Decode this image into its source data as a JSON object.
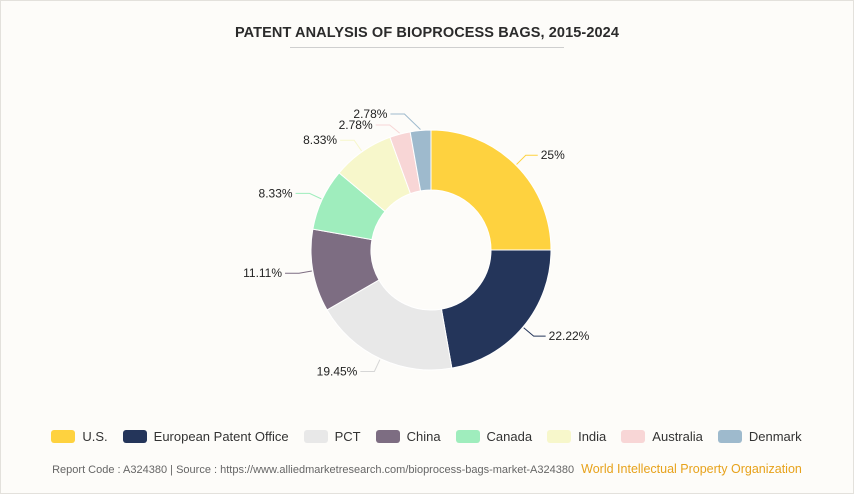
{
  "chart_data": {
    "type": "pie",
    "style": "donut",
    "title": "PATENT ANALYSIS OF BIOPROCESS BAGS, 2015-2024",
    "categories": [
      "U.S.",
      "European Patent Office",
      "PCT",
      "China",
      "Canada",
      "India",
      "Australia",
      "Denmark"
    ],
    "values": [
      25,
      22.22,
      19.45,
      11.11,
      8.33,
      8.33,
      2.78,
      2.78
    ],
    "labels": [
      "25%",
      "22.22%",
      "19.45%",
      "11.11%",
      "8.33%",
      "8.33%",
      "2.78%",
      "2.78%"
    ],
    "colors": [
      "#fed23f",
      "#24355a",
      "#e8e8e8",
      "#7d6d82",
      "#9fedbd",
      "#f7f7cb",
      "#f8d6d6",
      "#9ebacd"
    ],
    "legend_position": "bottom"
  },
  "footer": {
    "report_code": "Report Code : A324380",
    "separator": "|",
    "source": "Source : https://www.alliedmarketresearch.com/bioprocess-bags-market-A324380",
    "source_org": "World Intellectual Property Organization"
  }
}
